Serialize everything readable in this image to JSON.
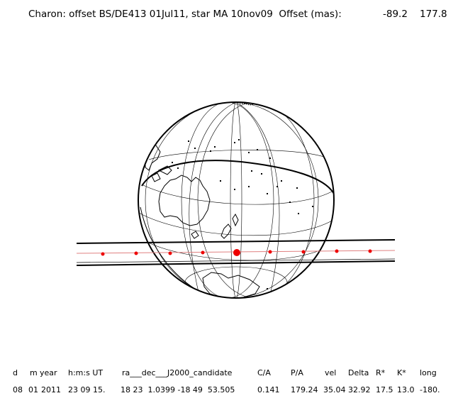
{
  "title": {
    "text": "Charon: offset BS/DE413 01Jul11, star MA 10nov09  Offset (mas):",
    "offset_1": "-89.2",
    "offset_2": "177.8"
  },
  "table": {
    "headers": [
      "d",
      "m",
      "year",
      "h:m:s UT",
      "ra___dec___J2000_candidate",
      "C/A",
      "P/A",
      "vel",
      "Delta",
      "R*",
      "K*",
      "long"
    ],
    "values": [
      "08",
      "01",
      "2011",
      "23 09 15.",
      "18 23  1.0399 -18 49  53.505",
      "0.141",
      "179.24",
      "35.04",
      "32.92",
      "17.5",
      "13.0",
      "-180."
    ]
  },
  "colors": {
    "ink": "#000000",
    "grid": "#000000",
    "track": "#000000",
    "center_line": "#e08080",
    "marker": "#ee0000"
  },
  "icons": [
    "globe-map",
    "occultation-track",
    "time-marker"
  ]
}
